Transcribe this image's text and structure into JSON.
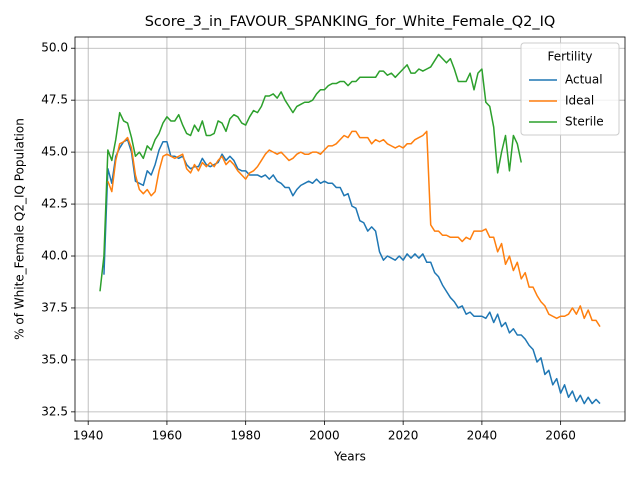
{
  "chart_data": {
    "type": "line",
    "title": "Score_3_in_FAVOUR_SPANKING_for_White_Female_Q2_IQ",
    "x_label": "Years",
    "y_label": "% of White_Female Q2_IQ Population",
    "legend_title": "Fertility",
    "legend_position": "upper right",
    "grid": true,
    "xlim": [
      1936.65,
      2076.35
    ],
    "ylim": [
      32.06,
      50.54
    ],
    "xticks": [
      1940,
      1960,
      1980,
      2000,
      2020,
      2040,
      2060
    ],
    "yticks": [
      {
        "value": 32.5,
        "label": "32.5"
      },
      {
        "value": 35,
        "label": "35.0"
      },
      37.5,
      {
        "value": 40,
        "label": "40.0"
      },
      42.5,
      {
        "value": 45,
        "label": "45.0"
      },
      47.5,
      {
        "value": 50,
        "label": "50.0"
      }
    ],
    "x": [
      1943,
      1944,
      1945,
      1946,
      1947,
      1948,
      1949,
      1950,
      1951,
      1952,
      1953,
      1954,
      1955,
      1956,
      1957,
      1958,
      1959,
      1960,
      1961,
      1962,
      1963,
      1964,
      1965,
      1966,
      1967,
      1968,
      1969,
      1970,
      1971,
      1972,
      1973,
      1974,
      1975,
      1976,
      1977,
      1978,
      1979,
      1980,
      1981,
      1982,
      1983,
      1984,
      1985,
      1986,
      1987,
      1988,
      1989,
      1990,
      1991,
      1992,
      1993,
      1994,
      1995,
      1996,
      1997,
      1998,
      1999,
      2000,
      2001,
      2002,
      2003,
      2004,
      2005,
      2006,
      2007,
      2008,
      2009,
      2010,
      2011,
      2012,
      2013,
      2014,
      2015,
      2016,
      2017,
      2018,
      2019,
      2020,
      2021,
      2022,
      2023,
      2024,
      2025,
      2026,
      2027,
      2028,
      2029,
      2030,
      2031,
      2032,
      2033,
      2034,
      2035,
      2036,
      2037,
      2038,
      2039,
      2040,
      2041,
      2042,
      2043,
      2044,
      2045,
      2046,
      2047,
      2048,
      2049,
      2050,
      2051,
      2052,
      2053,
      2054,
      2055,
      2056,
      2057,
      2058,
      2059,
      2060,
      2061,
      2062,
      2063,
      2064,
      2065,
      2066,
      2067,
      2068,
      2069,
      2070
    ],
    "series": [
      {
        "name": "Actual",
        "color": "#1f77b4",
        "values": [
          null,
          39.1,
          44.2,
          43.5,
          44.8,
          45.2,
          45.5,
          45.6,
          45.0,
          43.6,
          43.5,
          43.4,
          44.1,
          43.9,
          44.4,
          45.1,
          45.5,
          45.5,
          44.8,
          44.8,
          44.7,
          44.8,
          44.4,
          44.2,
          44.3,
          44.3,
          44.7,
          44.4,
          44.3,
          44.4,
          44.5,
          44.9,
          44.6,
          44.8,
          44.6,
          44.2,
          44.1,
          44.1,
          43.9,
          43.9,
          43.9,
          43.8,
          43.9,
          43.7,
          43.9,
          43.6,
          43.5,
          43.3,
          43.3,
          42.9,
          43.2,
          43.4,
          43.5,
          43.6,
          43.5,
          43.7,
          43.5,
          43.6,
          43.5,
          43.5,
          43.3,
          43.3,
          42.9,
          43.0,
          42.4,
          42.3,
          41.7,
          41.6,
          41.2,
          41.4,
          41.2,
          40.2,
          39.8,
          40.0,
          39.9,
          39.8,
          40.0,
          39.8,
          40.1,
          39.9,
          40.1,
          39.9,
          40.1,
          39.7,
          39.7,
          39.2,
          39.0,
          38.6,
          38.3,
          38.0,
          37.8,
          37.5,
          37.6,
          37.2,
          37.3,
          37.1,
          37.1,
          37.1,
          37.0,
          37.3,
          36.8,
          37.2,
          36.6,
          36.8,
          36.3,
          36.5,
          36.2,
          36.2,
          36.0,
          35.7,
          35.5,
          34.9,
          35.1,
          34.3,
          34.5,
          33.8,
          34.1,
          33.4,
          33.8,
          33.2,
          33.5,
          33.0,
          33.3,
          32.9,
          33.2,
          32.9,
          33.1,
          32.9
        ]
      },
      {
        "name": "Ideal",
        "color": "#ff7f0e",
        "values": [
          null,
          null,
          43.6,
          43.1,
          44.6,
          45.4,
          45.5,
          45.7,
          45.2,
          43.9,
          43.2,
          43.0,
          43.2,
          42.9,
          43.1,
          44.1,
          44.8,
          44.9,
          44.8,
          44.7,
          44.8,
          44.9,
          44.2,
          44.0,
          44.4,
          44.1,
          44.5,
          44.3,
          44.5,
          44.3,
          44.6,
          44.8,
          44.4,
          44.6,
          44.4,
          44.1,
          43.9,
          43.7,
          44.0,
          44.1,
          44.3,
          44.6,
          44.9,
          45.1,
          45.0,
          44.9,
          45.0,
          44.8,
          44.6,
          44.7,
          44.9,
          45.0,
          44.9,
          44.9,
          45.0,
          45.0,
          44.9,
          45.1,
          45.3,
          45.3,
          45.4,
          45.6,
          45.8,
          45.7,
          46.0,
          46.0,
          45.7,
          45.7,
          45.7,
          45.4,
          45.6,
          45.5,
          45.6,
          45.4,
          45.3,
          45.2,
          45.3,
          45.2,
          45.4,
          45.4,
          45.6,
          45.7,
          45.8,
          46.0,
          41.5,
          41.2,
          41.2,
          41.0,
          41.0,
          40.9,
          40.9,
          40.9,
          40.7,
          40.9,
          40.8,
          41.2,
          41.2,
          41.2,
          41.3,
          40.9,
          40.9,
          40.2,
          40.6,
          39.6,
          40.0,
          39.3,
          39.7,
          38.9,
          39.2,
          38.5,
          38.5,
          38.1,
          37.8,
          37.6,
          37.2,
          37.1,
          37.0,
          37.1,
          37.1,
          37.2,
          37.5,
          37.2,
          37.6,
          37.0,
          37.4,
          36.9,
          36.9,
          36.6
        ]
      },
      {
        "name": "Sterile",
        "color": "#2ca02c",
        "values": [
          38.3,
          40.0,
          45.1,
          44.6,
          45.6,
          46.9,
          46.5,
          46.4,
          45.7,
          44.8,
          45.0,
          44.7,
          45.3,
          45.1,
          45.6,
          45.9,
          46.4,
          46.7,
          46.5,
          46.5,
          46.8,
          46.3,
          45.9,
          45.8,
          46.3,
          46.0,
          46.5,
          45.8,
          45.8,
          45.9,
          46.5,
          46.4,
          46.0,
          46.6,
          46.8,
          46.7,
          46.4,
          46.3,
          46.7,
          47.0,
          46.9,
          47.2,
          47.7,
          47.7,
          47.8,
          47.6,
          47.9,
          47.5,
          47.2,
          46.9,
          47.2,
          47.3,
          47.4,
          47.4,
          47.5,
          47.8,
          48.0,
          48.0,
          48.2,
          48.3,
          48.3,
          48.4,
          48.4,
          48.2,
          48.4,
          48.4,
          48.6,
          48.6,
          48.6,
          48.6,
          48.6,
          48.9,
          48.9,
          48.7,
          48.8,
          48.6,
          48.8,
          49.0,
          49.2,
          48.8,
          48.8,
          49.0,
          48.9,
          49.0,
          49.1,
          49.4,
          49.7,
          49.5,
          49.3,
          49.5,
          49.0,
          48.4,
          48.4,
          48.4,
          48.8,
          48.0,
          48.8,
          49.0,
          47.4,
          47.2,
          46.2,
          44.0,
          45.0,
          45.8,
          44.1,
          45.8,
          45.4,
          44.5,
          null,
          null,
          null,
          null,
          null,
          null,
          null,
          null,
          null,
          null,
          null,
          null,
          null,
          null,
          null,
          null,
          null,
          null,
          null,
          null
        ]
      }
    ]
  }
}
